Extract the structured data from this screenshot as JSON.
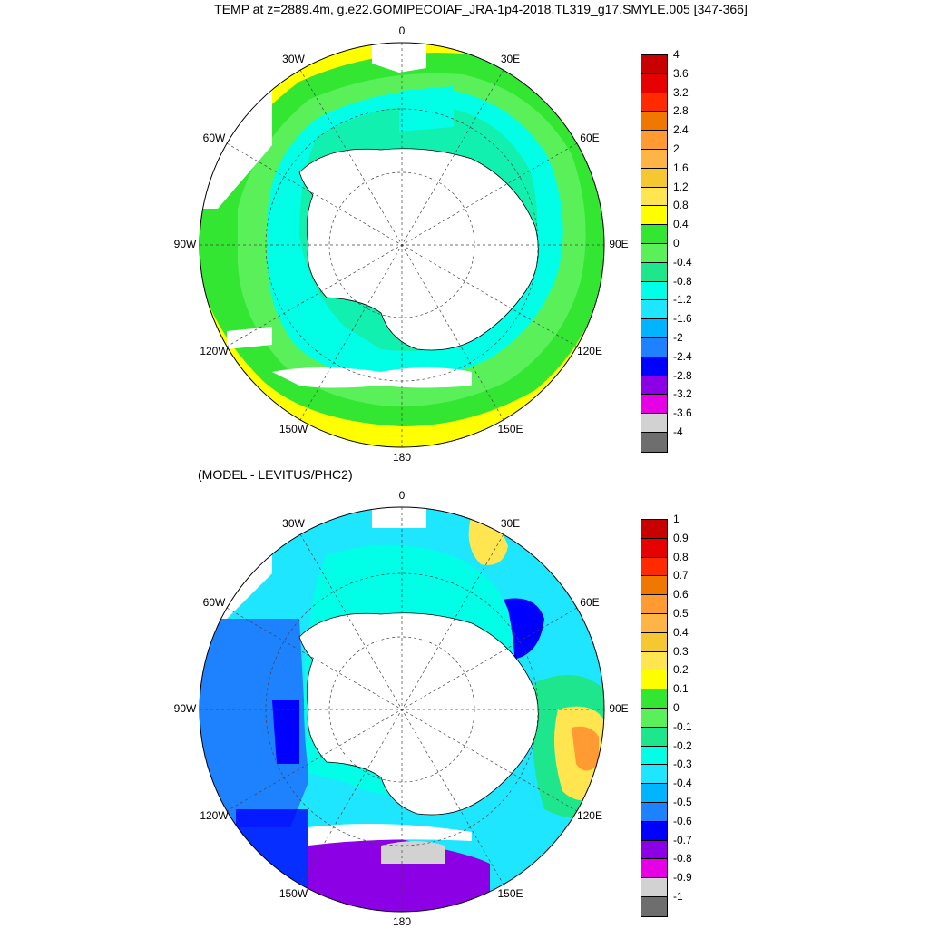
{
  "title": "TEMP at z=2889.4m, g.e22.GOMIPECOIAF_JRA-1p4-2018.TL319_g17.SMYLE.005 [347-366]",
  "subtitle": "(MODEL - LEVITUS/PHC2)",
  "lon_labels": [
    "0",
    "30E",
    "60E",
    "90E",
    "120E",
    "150E",
    "180",
    "150W",
    "120W",
    "90W",
    "60W",
    "30W"
  ],
  "top_map": {
    "colorbar": {
      "labels": [
        "4",
        "3.6",
        "3.2",
        "2.8",
        "2.4",
        "2",
        "1.6",
        "1.2",
        "0.8",
        "0.4",
        "0",
        "-0.4",
        "-0.8",
        "-1.2",
        "-1.6",
        "-2",
        "-2.4",
        "-2.8",
        "-3.2",
        "-3.6",
        "-4"
      ],
      "colors": [
        "#c80000",
        "#e60000",
        "#ff2a00",
        "#f07800",
        "#ff9b32",
        "#ffb446",
        "#f5c832",
        "#ffe650",
        "#ffff00",
        "#32e632",
        "#5af05a",
        "#1ee68c",
        "#00ffe6",
        "#1ee6ff",
        "#00b4ff",
        "#1e82ff",
        "#0000ff",
        "#8c00e6",
        "#e600e6",
        "#d2d2d2",
        "#6e6e6e"
      ]
    }
  },
  "bottom_map": {
    "colorbar": {
      "labels": [
        "1",
        "0.9",
        "0.8",
        "0.7",
        "0.6",
        "0.5",
        "0.4",
        "0.3",
        "0.2",
        "0.1",
        "0",
        "-0.1",
        "-0.2",
        "-0.3",
        "-0.4",
        "-0.5",
        "-0.6",
        "-0.7",
        "-0.8",
        "-0.9",
        "-1"
      ],
      "colors": [
        "#c80000",
        "#e60000",
        "#ff2a00",
        "#f07800",
        "#ff9b32",
        "#ffb446",
        "#f5c832",
        "#ffe650",
        "#ffff00",
        "#32e632",
        "#5af05a",
        "#1ee68c",
        "#00ffe6",
        "#1ee6ff",
        "#00b4ff",
        "#1e82ff",
        "#0000ff",
        "#8c00e6",
        "#e600e6",
        "#d2d2d2",
        "#6e6e6e"
      ]
    }
  }
}
